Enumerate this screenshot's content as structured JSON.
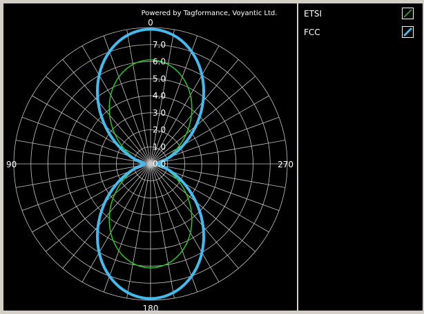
{
  "chart_data": {
    "type": "polar-line",
    "credit": "Powered by Tagformance, Voyantic Ltd.",
    "r_ticks": [
      "0.0",
      "1.0",
      "2.0",
      "3.0",
      "4.0",
      "5.0",
      "6.0",
      "7.0"
    ],
    "r_max": 8,
    "angle_labels": [
      {
        "angle": 0,
        "label": "0"
      },
      {
        "angle": 90,
        "label": "90"
      },
      {
        "angle": 180,
        "label": "180"
      },
      {
        "angle": 270,
        "label": "270"
      }
    ],
    "angle_step_deg": 10,
    "angle_direction": "counterclockwise",
    "zero_angle": "top",
    "grid": true,
    "legend_position": "right",
    "series": [
      {
        "name": "ETSI",
        "color": "#22cc22",
        "width": 1.5,
        "pattern": "sin^2",
        "peak": 6.1,
        "angles": [
          0,
          10,
          20,
          30,
          40,
          50,
          60,
          70,
          80,
          90,
          100,
          110,
          120,
          130,
          140,
          150,
          160,
          170,
          180,
          190,
          200,
          210,
          220,
          230,
          240,
          250,
          260,
          270,
          280,
          290,
          300,
          310,
          320,
          330,
          340,
          350
        ],
        "values": [
          6.1,
          6.0,
          5.8,
          5.3,
          4.7,
          4.0,
          3.2,
          2.3,
          1.4,
          0.5,
          1.4,
          2.3,
          3.2,
          4.0,
          4.7,
          5.3,
          5.8,
          6.0,
          6.1,
          6.0,
          5.8,
          5.3,
          4.7,
          4.0,
          3.2,
          2.3,
          1.4,
          0.5,
          1.4,
          2.3,
          3.2,
          4.0,
          4.7,
          5.3,
          5.8,
          6.0
        ]
      },
      {
        "name": "FCC",
        "color": "#44bbee",
        "width": 4,
        "pattern": "sin^2",
        "peak": 7.9,
        "angles": [
          0,
          10,
          20,
          30,
          40,
          50,
          60,
          70,
          80,
          90,
          100,
          110,
          120,
          130,
          140,
          150,
          160,
          170,
          180,
          190,
          200,
          210,
          220,
          230,
          240,
          250,
          260,
          270,
          280,
          290,
          300,
          310,
          320,
          330,
          340,
          350
        ],
        "values": [
          7.9,
          7.8,
          7.5,
          6.9,
          6.1,
          5.2,
          4.1,
          3.0,
          1.8,
          0.6,
          1.8,
          3.0,
          4.1,
          5.2,
          6.1,
          6.9,
          7.5,
          7.8,
          7.9,
          7.8,
          7.5,
          6.9,
          6.1,
          5.2,
          4.1,
          3.0,
          1.8,
          0.6,
          1.8,
          3.0,
          4.1,
          5.2,
          6.1,
          6.9,
          7.5,
          7.8
        ]
      }
    ]
  }
}
